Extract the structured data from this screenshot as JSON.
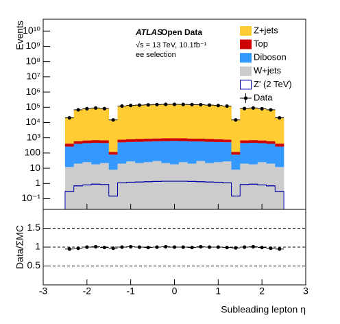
{
  "chart_data": [
    {
      "type": "histogram",
      "stacked": true,
      "log": true,
      "ylabel": "Events",
      "bins": [
        -2.5,
        -2.3,
        -2.1,
        -1.9,
        -1.7,
        -1.5,
        -1.3,
        -1.1,
        -0.9,
        -0.7,
        -0.5,
        -0.3,
        -0.1,
        0.1,
        0.3,
        0.5,
        0.7,
        0.9,
        1.1,
        1.3,
        1.5,
        1.7,
        1.9,
        2.1,
        2.3,
        2.5
      ],
      "series": [
        {
          "name": "Z+jets",
          "color": "#ffcc33",
          "values": [
            21000,
            70000,
            80000,
            88000,
            82000,
            15000,
            120000,
            130000,
            138000,
            145000,
            150000,
            153000,
            155000,
            153000,
            150000,
            145000,
            138000,
            130000,
            120000,
            15000,
            82000,
            88000,
            80000,
            70000,
            21000
          ]
        },
        {
          "name": "Top",
          "color": "#cc0000",
          "values": [
            150,
            200,
            220,
            230,
            220,
            40,
            250,
            270,
            290,
            300,
            310,
            320,
            320,
            320,
            310,
            300,
            290,
            270,
            250,
            40,
            220,
            230,
            220,
            200,
            150
          ]
        },
        {
          "name": "Diboson",
          "color": "#3399ff",
          "values": [
            250,
            380,
            420,
            450,
            430,
            70,
            480,
            500,
            520,
            540,
            560,
            580,
            600,
            580,
            560,
            540,
            520,
            500,
            480,
            70,
            430,
            450,
            420,
            380,
            250
          ]
        },
        {
          "name": "W+jets",
          "color": "#cccccc",
          "values": [
            12,
            20,
            25,
            18,
            22,
            8,
            20,
            28,
            22,
            25,
            30,
            22,
            18,
            25,
            20,
            30,
            22,
            25,
            28,
            8,
            20,
            18,
            25,
            20,
            12
          ]
        }
      ],
      "signal": {
        "name": "Z' (2 TeV)",
        "color": "#0000aa",
        "values": [
          0.3,
          0.7,
          0.8,
          0.9,
          0.85,
          0.15,
          1.1,
          1.2,
          1.25,
          1.3,
          1.35,
          1.4,
          1.4,
          1.4,
          1.35,
          1.3,
          1.25,
          1.2,
          1.1,
          0.15,
          0.85,
          0.9,
          0.8,
          0.7,
          0.3
        ]
      },
      "data": {
        "name": "Data",
        "color": "#000000",
        "values": [
          20300,
          68500,
          80600,
          89600,
          81800,
          14800,
          120700,
          131800,
          138800,
          144400,
          150900,
          155400,
          155900,
          153900,
          149400,
          147300,
          138800,
          130800,
          119600,
          14800,
          82600,
          89700,
          79800,
          68500,
          20300
        ]
      },
      "annotations": [
        "ATLAS",
        "Open Data",
        "√s = 13 TeV, 10.1fb⁻¹",
        "ee selection"
      ],
      "xlim": [
        -3,
        3
      ],
      "xticks": [
        -3,
        -2,
        -1,
        0,
        1,
        2,
        3
      ],
      "ylim": [
        0.02,
        60000000000.0
      ],
      "yticks": [
        {
          "value": 0.1,
          "label": "10⁻¹"
        },
        1,
        10,
        100,
        {
          "value": 1000,
          "label": "10³"
        },
        {
          "value": 10000,
          "label": "10⁴"
        },
        {
          "value": 100000,
          "label": "10⁵"
        },
        {
          "value": 1000000,
          "label": "10⁶"
        },
        {
          "value": 10000000,
          "label": "10⁷"
        },
        {
          "value": 100000000,
          "label": "10⁸"
        },
        {
          "value": 1000000000,
          "label": "10⁹"
        },
        {
          "value": 10000000000,
          "label": "10¹⁰"
        }
      ],
      "legend": "upper right"
    },
    {
      "type": "scatter",
      "xlabel": "Subleading lepton η",
      "ylabel": "Data/ΣMC",
      "x": [
        -2.4,
        -2.2,
        -2.0,
        -1.8,
        -1.6,
        -1.4,
        -1.2,
        -1.0,
        -0.8,
        -0.6,
        -0.4,
        -0.2,
        0,
        0.2,
        0.4,
        0.6,
        0.8,
        1.0,
        1.2,
        1.4,
        1.6,
        1.8,
        2.0,
        2.2,
        2.4
      ],
      "values": [
        0.95,
        0.97,
        1.0,
        1.01,
        0.99,
        0.97,
        1.0,
        1.01,
        1.0,
        0.99,
        1.0,
        1.01,
        1.0,
        1.0,
        0.99,
        1.01,
        1.0,
        1.0,
        0.99,
        0.98,
        1.0,
        1.01,
        0.99,
        0.97,
        0.95
      ],
      "color": "#000000",
      "xlim": [
        -3,
        3
      ],
      "xticks": [
        -3,
        -2,
        -1,
        0,
        1,
        2,
        3
      ],
      "ylim": [
        0,
        2
      ],
      "yticks": [
        0.5,
        1,
        1.5
      ],
      "grid": true
    }
  ]
}
